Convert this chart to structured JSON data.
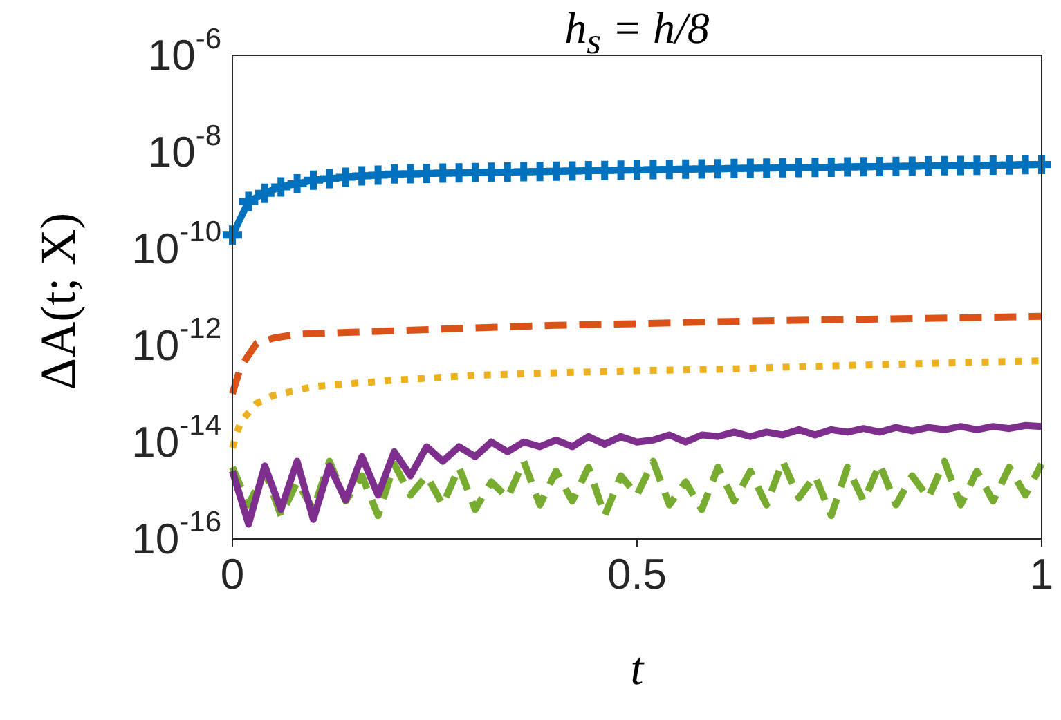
{
  "chart_data": {
    "type": "line",
    "title": "h$_{s}$ = h/8",
    "xlabel": "t",
    "ylabel": "ΔA(t; X)",
    "log": true,
    "xlim": [
      0,
      1
    ],
    "xticks": [
      0,
      0.5,
      1
    ],
    "ylim": [
      1e-16,
      1e-06
    ],
    "yticks": [
      {
        "value": 1e-16,
        "label": "10$^{-16}$"
      },
      {
        "value": 1e-14,
        "label": "10$^{-14}$"
      },
      {
        "value": 1e-12,
        "label": "10$^{-12}$"
      },
      {
        "value": 1e-10,
        "label": "10$^{-10}$"
      },
      {
        "value": 1e-08,
        "label": "10$^{-8}$"
      },
      {
        "value": 1e-06,
        "label": "10$^{-6}$"
      }
    ],
    "series": [
      {
        "color": "#0072bd",
        "marker": "cross",
        "line_style": "solid",
        "x": [
          0,
          0.02,
          0.04,
          0.06,
          0.08,
          0.1,
          0.12,
          0.14,
          0.16,
          0.18,
          0.2,
          0.22,
          0.24,
          0.26,
          0.28,
          0.3,
          0.32,
          0.34,
          0.36,
          0.38,
          0.4,
          0.42,
          0.44,
          0.46,
          0.48,
          0.5,
          0.52,
          0.54,
          0.56,
          0.58,
          0.6,
          0.62,
          0.64,
          0.66,
          0.68,
          0.7,
          0.72,
          0.74,
          0.76,
          0.78,
          0.8,
          0.82,
          0.84,
          0.86,
          0.88,
          0.9,
          0.92,
          0.94,
          0.96,
          0.98,
          1
        ],
        "values": [
          1.9e-10,
          9.5e-10,
          1.4e-09,
          1.9e-09,
          2.2e-09,
          2.6e-09,
          2.8e-09,
          3e-09,
          3.2e-09,
          3.3e-09,
          3.5e-09,
          3.55e-09,
          3.6e-09,
          3.65e-09,
          3.7e-09,
          3.75e-09,
          3.8e-09,
          3.85e-09,
          3.9e-09,
          3.95e-09,
          4e-09,
          4.05e-09,
          4.1e-09,
          4.15e-09,
          4.2e-09,
          4.25e-09,
          4.3e-09,
          4.35e-09,
          4.4e-09,
          4.45e-09,
          4.5e-09,
          4.55e-09,
          4.6e-09,
          4.65e-09,
          4.7e-09,
          4.75e-09,
          4.8e-09,
          4.85e-09,
          4.9e-09,
          4.95e-09,
          5e-09,
          5.05e-09,
          5.1e-09,
          5.15e-09,
          5.2e-09,
          5.25e-09,
          5.3e-09,
          5.35e-09,
          5.4e-09,
          5.45e-09,
          5.5e-09
        ]
      },
      {
        "color": "#d95319",
        "marker": "none",
        "line_style": "dashed",
        "x": [
          0,
          0.01,
          0.02,
          0.03,
          0.05,
          0.08,
          0.12,
          0.2,
          0.3,
          0.4,
          0.5,
          0.6,
          0.75,
          0.9,
          1
        ],
        "values": [
          1e-13,
          3.5e-13,
          6.3e-13,
          1.1e-12,
          1.4e-12,
          1.7e-12,
          1.8e-12,
          2e-12,
          2.3e-12,
          2.6e-12,
          2.8e-12,
          3.1e-12,
          3.4e-12,
          3.7e-12,
          4e-12
        ]
      },
      {
        "color": "#edb120",
        "marker": "none",
        "line_style": "dotted",
        "x": [
          0,
          0.01,
          0.03,
          0.05,
          0.1,
          0.2,
          0.3,
          0.4,
          0.5,
          0.6,
          0.75,
          0.9,
          1
        ],
        "values": [
          7.6e-15,
          2.6e-14,
          6.3e-14,
          9.1e-14,
          1.4e-13,
          1.9e-13,
          2.4e-13,
          2.7e-13,
          3e-13,
          3.2e-13,
          3.8e-13,
          4.4e-13,
          4.8e-13
        ]
      },
      {
        "color": "#7e2f8e",
        "marker": "none",
        "line_style": "solid",
        "x": [
          0,
          0.02,
          0.04,
          0.06,
          0.08,
          0.1,
          0.12,
          0.14,
          0.16,
          0.18,
          0.2,
          0.22,
          0.24,
          0.26,
          0.28,
          0.3,
          0.32,
          0.34,
          0.36,
          0.38,
          0.4,
          0.42,
          0.44,
          0.46,
          0.48,
          0.5,
          0.52,
          0.54,
          0.56,
          0.58,
          0.6,
          0.62,
          0.64,
          0.66,
          0.68,
          0.7,
          0.72,
          0.74,
          0.76,
          0.78,
          0.8,
          0.82,
          0.84,
          0.86,
          0.88,
          0.9,
          0.92,
          0.94,
          0.96,
          0.98,
          1
        ],
        "values": [
          2.5e-15,
          2e-16,
          3.2e-15,
          4e-16,
          4e-15,
          2.5e-16,
          3.2e-15,
          6.3e-16,
          5e-15,
          8e-16,
          6.3e-15,
          2e-15,
          8e-15,
          4e-15,
          8e-15,
          5e-15,
          1e-14,
          6.3e-15,
          1e-14,
          8e-15,
          1.1e-14,
          8e-15,
          1.3e-14,
          9e-15,
          1.3e-14,
          1e-14,
          1.1e-14,
          1.4e-14,
          1e-14,
          1.4e-14,
          1.3e-14,
          1.6e-14,
          1.3e-14,
          1.6e-14,
          1.4e-14,
          1.8e-14,
          1.4e-14,
          1.8e-14,
          1.6e-14,
          1.9e-14,
          1.6e-14,
          2e-14,
          1.7e-14,
          2e-14,
          1.8e-14,
          2.1e-14,
          1.8e-14,
          2.1e-14,
          1.9e-14,
          2.2e-14,
          2.1e-14
        ]
      },
      {
        "color": "#77ac30",
        "marker": "none",
        "line_style": "dashed",
        "x": [
          0,
          0.02,
          0.04,
          0.06,
          0.08,
          0.1,
          0.12,
          0.14,
          0.16,
          0.18,
          0.2,
          0.22,
          0.24,
          0.26,
          0.28,
          0.3,
          0.32,
          0.34,
          0.36,
          0.38,
          0.4,
          0.42,
          0.44,
          0.46,
          0.48,
          0.5,
          0.52,
          0.54,
          0.56,
          0.58,
          0.6,
          0.62,
          0.64,
          0.66,
          0.68,
          0.7,
          0.72,
          0.74,
          0.76,
          0.78,
          0.8,
          0.82,
          0.84,
          0.86,
          0.88,
          0.9,
          0.92,
          0.94,
          0.96,
          0.98,
          1
        ],
        "values": [
          3e-15,
          5e-16,
          2.5e-15,
          3e-16,
          1.5e-15,
          4e-16,
          4e-15,
          6e-16,
          2e-15,
          3e-16,
          3.5e-15,
          8e-16,
          2e-15,
          5e-16,
          3e-15,
          4e-16,
          1.5e-15,
          7e-16,
          4e-15,
          5e-16,
          2.5e-15,
          6e-16,
          3e-15,
          3e-16,
          2e-15,
          8e-16,
          4e-15,
          5e-16,
          1.5e-15,
          4e-16,
          3e-15,
          6e-16,
          2.5e-15,
          5e-16,
          4e-15,
          7e-16,
          2e-15,
          3e-16,
          3e-15,
          6e-16,
          3.5e-15,
          5e-16,
          2e-15,
          7e-16,
          4e-15,
          5e-16,
          2.5e-15,
          6e-16,
          3e-15,
          8e-16,
          3.5e-15
        ]
      }
    ]
  }
}
